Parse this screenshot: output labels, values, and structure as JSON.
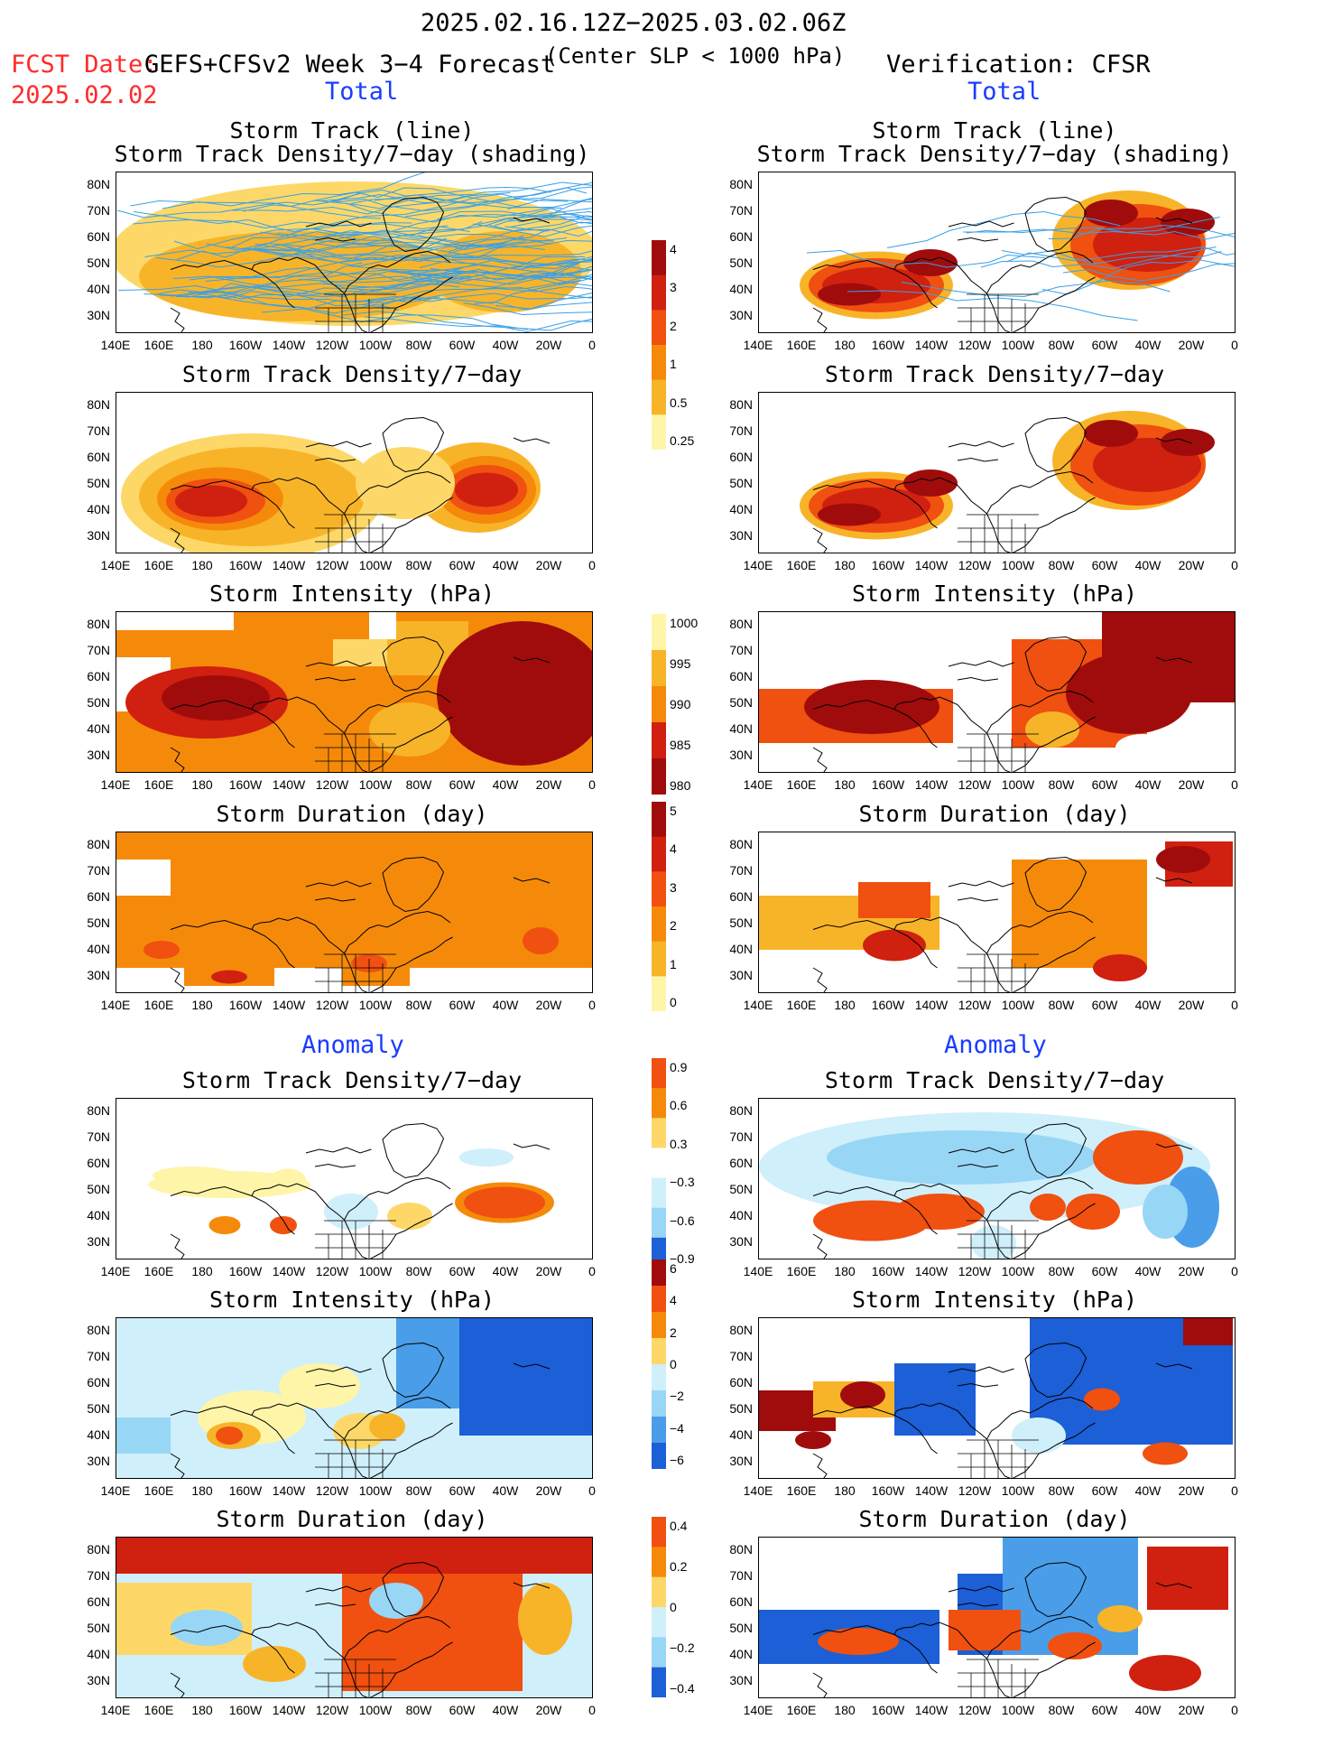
{
  "header": {
    "date_range": "2025.02.16.12Z−2025.03.02.06Z",
    "fcst_date_label": "FCST Date:",
    "fcst_date": "2025.02.02",
    "model_title": "GEFS+CFSv2 Week 3−4 Forecast",
    "center_slp": "(Center SLP < 1000 hPa)",
    "verification": "Verification: CFSR"
  },
  "sections": {
    "total_left": "Total",
    "total_right": "Total",
    "anomaly_left": "Anomaly",
    "anomaly_right": "Anomaly"
  },
  "panels": {
    "track_line_1": "Storm Track (line)",
    "track_line_2": "Storm Track Density/7−day (shading)",
    "track_density": "Storm Track Density/7−day",
    "intensity": "Storm Intensity (hPa)",
    "duration": "Storm Duration (day)"
  },
  "axes": {
    "lat_labels": [
      "80N",
      "70N",
      "60N",
      "50N",
      "40N",
      "30N"
    ],
    "lon_labels": [
      "140E",
      "160E",
      "180",
      "160W",
      "140W",
      "120W",
      "100W",
      "80W",
      "60W",
      "40W",
      "20W",
      "0"
    ]
  },
  "colorbars": {
    "density_total": [
      "4",
      "3",
      "2",
      "1",
      "0.5",
      "0.25"
    ],
    "intensity_total": [
      "1000",
      "995",
      "990",
      "985",
      "980"
    ],
    "duration_total": [
      "5",
      "4",
      "3",
      "2",
      "1",
      "0"
    ],
    "density_anom": [
      "0.9",
      "0.6",
      "0.3",
      "−0.3",
      "−0.6",
      "−0.9"
    ],
    "intensity_anom": [
      "6",
      "4",
      "2",
      "0",
      "−2",
      "−4",
      "−6"
    ],
    "duration_anom": [
      "0.4",
      "0.2",
      "0",
      "−0.2",
      "−0.4"
    ]
  },
  "colors": {
    "warm": [
      "#fff5a8",
      "#fdd868",
      "#f8b428",
      "#f58a0a",
      "#f05010",
      "#d02010",
      "#a00c0c"
    ],
    "cool": [
      "#cfeffb",
      "#98d6f5",
      "#4a9de8",
      "#1c5fd6"
    ],
    "track_line": "#3aa0e8",
    "title_red": "#ff2a2a",
    "section_blue": "#1a3cff"
  }
}
